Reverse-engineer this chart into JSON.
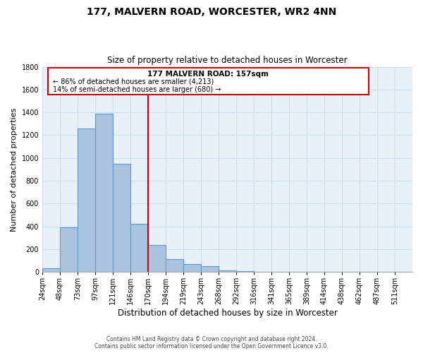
{
  "title": "177, MALVERN ROAD, WORCESTER, WR2 4NN",
  "subtitle": "Size of property relative to detached houses in Worcester",
  "xlabel": "Distribution of detached houses by size in Worcester",
  "ylabel": "Number of detached properties",
  "bin_labels": [
    "24sqm",
    "48sqm",
    "73sqm",
    "97sqm",
    "121sqm",
    "146sqm",
    "170sqm",
    "194sqm",
    "219sqm",
    "243sqm",
    "268sqm",
    "292sqm",
    "316sqm",
    "341sqm",
    "365sqm",
    "389sqm",
    "414sqm",
    "438sqm",
    "462sqm",
    "487sqm",
    "511sqm"
  ],
  "bar_values": [
    30,
    390,
    1260,
    1390,
    950,
    420,
    235,
    110,
    70,
    50,
    15,
    5,
    2,
    0,
    0,
    0,
    0,
    0,
    0,
    0,
    0
  ],
  "bar_color": "#aac4e0",
  "bar_edge_color": "#5b9bd5",
  "property_line_x": 6,
  "property_line_color": "#cc0000",
  "annotation_title": "177 MALVERN ROAD: 157sqm",
  "annotation_line1": "← 86% of detached houses are smaller (4,213)",
  "annotation_line2": "14% of semi-detached houses are larger (680) →",
  "annotation_box_color": "#cc0000",
  "ylim": [
    0,
    1800
  ],
  "yticks": [
    0,
    200,
    400,
    600,
    800,
    1000,
    1200,
    1400,
    1600,
    1800
  ],
  "footer_line1": "Contains HM Land Registry data © Crown copyright and database right 2024.",
  "footer_line2": "Contains public sector information licensed under the Open Government Licence v3.0.",
  "background_color": "#ffffff",
  "grid_color": "#ccddee",
  "title_fontsize": 10,
  "subtitle_fontsize": 8.5,
  "ylabel_fontsize": 8,
  "xlabel_fontsize": 8.5,
  "tick_fontsize": 7,
  "annotation_title_fontsize": 7.5,
  "annotation_text_fontsize": 7
}
